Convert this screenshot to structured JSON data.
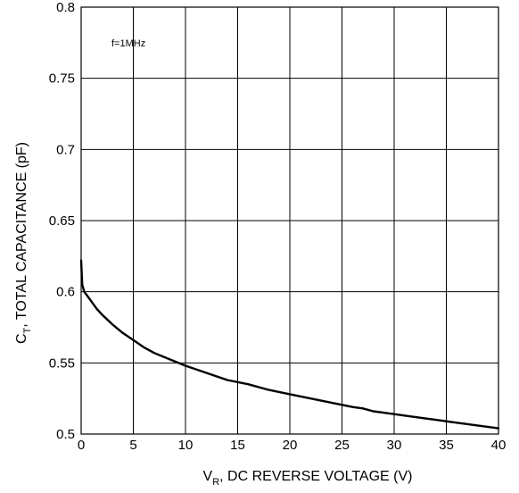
{
  "chart_data": {
    "type": "line",
    "title": "",
    "annotation": "f=1MHz",
    "xlabel": {
      "main": "V",
      "sub": "R",
      "rest": ", DC REVERSE VOLTAGE (V)"
    },
    "ylabel": {
      "main": "C",
      "sub": "T",
      "rest": ", TOTAL CAPACITANCE (pF)"
    },
    "xlim": [
      0,
      40
    ],
    "ylim": [
      0.5,
      0.8
    ],
    "x_ticks": [
      0,
      5,
      10,
      15,
      20,
      25,
      30,
      35,
      40
    ],
    "x_tick_labels": [
      "0",
      "5",
      "10",
      "15",
      "20",
      "25",
      "30",
      "35",
      "40"
    ],
    "y_ticks": [
      0.5,
      0.55,
      0.6,
      0.65,
      0.7,
      0.75,
      0.8
    ],
    "y_tick_labels": [
      "0.5",
      "0.55",
      "0.6",
      "0.65",
      "0.7",
      "0.75",
      "0.8"
    ],
    "grid": true,
    "line_color": "#000000",
    "series": [
      {
        "x": [
          0,
          0.1,
          0.3,
          0.6,
          1,
          1.5,
          2,
          3,
          4,
          5,
          6,
          7,
          8,
          9,
          10,
          12,
          14,
          16,
          18,
          20,
          22,
          24,
          26,
          27,
          28,
          29,
          30,
          32,
          34,
          36,
          38,
          40
        ],
        "y": [
          0.622,
          0.605,
          0.6,
          0.597,
          0.593,
          0.588,
          0.584,
          0.577,
          0.571,
          0.566,
          0.561,
          0.557,
          0.554,
          0.551,
          0.548,
          0.543,
          0.538,
          0.535,
          0.531,
          0.528,
          0.525,
          0.522,
          0.519,
          0.518,
          0.516,
          0.515,
          0.514,
          0.512,
          0.51,
          0.508,
          0.506,
          0.504
        ]
      }
    ]
  }
}
